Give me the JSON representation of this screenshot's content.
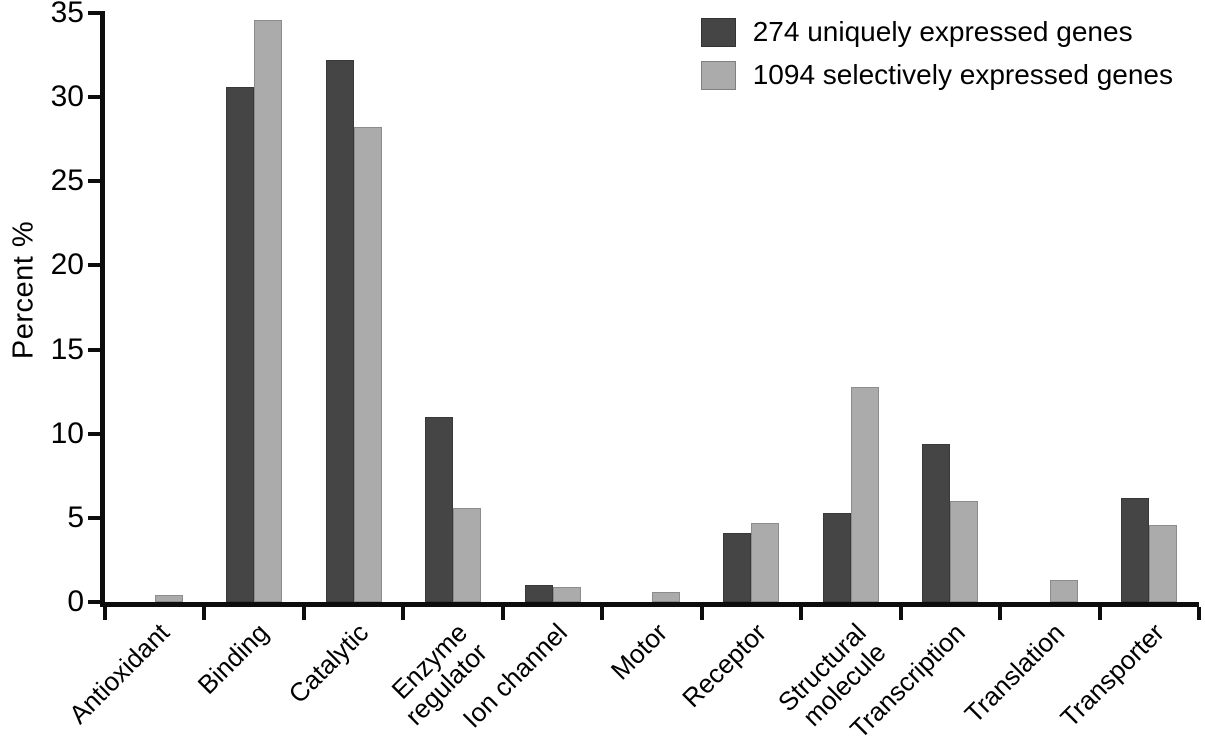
{
  "chart_data": {
    "type": "bar",
    "title": "",
    "xlabel": "",
    "ylabel": "Percent %",
    "ylim": [
      0,
      35
    ],
    "yticks": [
      0,
      5,
      10,
      15,
      20,
      25,
      30,
      35
    ],
    "grid": false,
    "legend_position": "top-right",
    "categories": [
      "Antioxidant",
      "Binding",
      "Catalytic",
      "Enzyme\nregulator",
      "Ion channel",
      "Motor",
      "Receptor",
      "Structural\nmolecule",
      "Transcription",
      "Translation",
      "Transporter"
    ],
    "series": [
      {
        "name": "274 uniquely expressed genes",
        "color": "#454545",
        "values": [
          0,
          30.6,
          32.2,
          11.0,
          1.0,
          0,
          4.1,
          5.3,
          9.4,
          0,
          6.2
        ]
      },
      {
        "name": "1094 selectively expressed genes",
        "color": "#ababab",
        "values": [
          0.4,
          34.6,
          28.2,
          5.6,
          0.9,
          0.6,
          4.7,
          12.8,
          6.0,
          1.3,
          4.6
        ]
      }
    ]
  },
  "colors": {
    "axis": "#0d0d0d",
    "text": "#000000",
    "background": "#ffffff"
  }
}
